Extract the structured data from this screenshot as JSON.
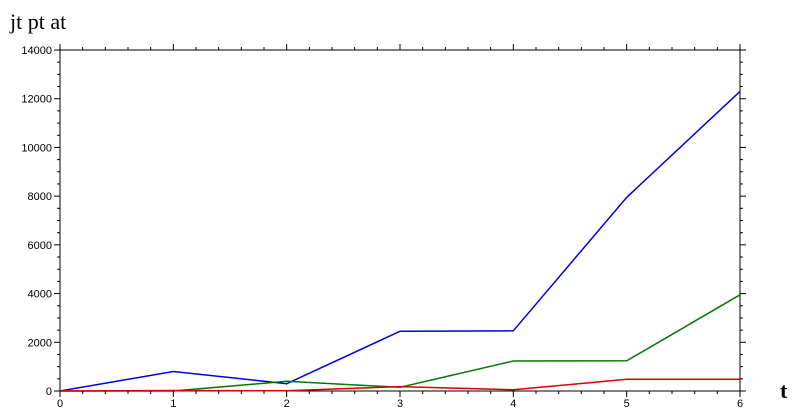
{
  "chart_data": {
    "type": "line",
    "title": "jt pt at",
    "xlabel": "t",
    "ylabel": "",
    "x": [
      0,
      1,
      2,
      3,
      4,
      5,
      6
    ],
    "xlim": [
      0,
      6
    ],
    "ylim": [
      0,
      14000
    ],
    "x_ticks": [
      "0",
      "1",
      "2",
      "3",
      "4",
      "5",
      "6"
    ],
    "y_ticks": [
      "0",
      "2000",
      "4000",
      "6000",
      "8000",
      "10000",
      "12000",
      "14000"
    ],
    "grid": false,
    "legend": "none",
    "series": [
      {
        "color": "#0000dd",
        "values": [
          0,
          800,
          300,
          2450,
          2470,
          7950,
          12300
        ]
      },
      {
        "color": "#007700",
        "values": [
          0,
          0,
          400,
          150,
          1230,
          1240,
          3950
        ]
      },
      {
        "color": "#dd0000",
        "values": [
          0,
          20,
          10,
          180,
          50,
          480,
          480
        ]
      }
    ]
  }
}
